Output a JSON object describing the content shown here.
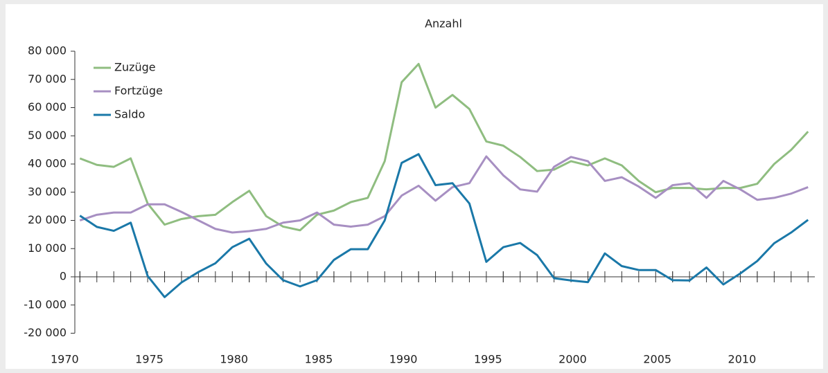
{
  "chart_data": {
    "type": "line",
    "title": "Anzahl",
    "x": [
      1970,
      1971,
      1972,
      1973,
      1974,
      1975,
      1976,
      1977,
      1978,
      1979,
      1980,
      1981,
      1982,
      1983,
      1984,
      1985,
      1986,
      1987,
      1988,
      1989,
      1990,
      1991,
      1992,
      1993,
      1994,
      1995,
      1996,
      1997,
      1998,
      1999,
      2000,
      2001,
      2002,
      2003,
      2004,
      2005,
      2006,
      2007,
      2008,
      2009,
      2010,
      2011,
      2012,
      2013
    ],
    "series": [
      {
        "name": "Zuzüge",
        "color": "#8fbd80",
        "values": [
          42000,
          39700,
          39000,
          42000,
          26000,
          18500,
          20500,
          21500,
          22000,
          26500,
          30500,
          21500,
          17800,
          16500,
          22000,
          23500,
          26500,
          28000,
          41000,
          69000,
          75500,
          60000,
          64500,
          59500,
          48000,
          46500,
          42500,
          37500,
          38000,
          41000,
          39500,
          42000,
          39500,
          34000,
          30000,
          31500,
          31500,
          31000,
          31500,
          31500,
          33000,
          40000,
          45000,
          51500
        ]
      },
      {
        "name": "Fortzüge",
        "color": "#a78fc2",
        "values": [
          20000,
          22000,
          22800,
          22800,
          25700,
          25700,
          23000,
          20000,
          17000,
          15700,
          16200,
          17000,
          19200,
          20000,
          22800,
          18500,
          17800,
          18500,
          21500,
          28800,
          32300,
          27000,
          31800,
          33200,
          42700,
          36000,
          31000,
          30200,
          39000,
          42500,
          41000,
          34000,
          35300,
          32000,
          28000,
          32500,
          33200,
          28000,
          34000,
          31000,
          27300,
          28000,
          29500,
          31800
        ]
      },
      {
        "name": "Saldo",
        "color": "#1a78a8",
        "values": [
          21700,
          17700,
          16300,
          19200,
          300,
          -7200,
          -2000,
          1700,
          4800,
          10500,
          13500,
          4700,
          -1200,
          -3400,
          -1200,
          6000,
          9800,
          9800,
          20000,
          40400,
          43500,
          32500,
          33200,
          26000,
          5300,
          10500,
          12000,
          7700,
          -500,
          -1300,
          -1900,
          8300,
          3800,
          2400,
          2400,
          -1200,
          -1300,
          3300,
          -2700,
          1200,
          5600,
          11900,
          15700,
          20200
        ]
      }
    ],
    "xlim": [
      1969.7,
      2013.4
    ],
    "xticks": [
      1970,
      1975,
      1980,
      1985,
      1990,
      1995,
      2000,
      2005,
      2010
    ],
    "ylim": [
      -20000,
      80000
    ],
    "yticks": [
      {
        "value": -20000,
        "label": "-20 000"
      },
      {
        "value": -10000,
        "label": "-10 000"
      },
      0,
      {
        "value": 10000,
        "label": "10 000"
      },
      {
        "value": 20000,
        "label": "20 000"
      },
      {
        "value": 30000,
        "label": "30 000"
      },
      {
        "value": 40000,
        "label": "40 000"
      },
      {
        "value": 50000,
        "label": "50 000"
      },
      {
        "value": 60000,
        "label": "60 000"
      },
      {
        "value": 70000,
        "label": "70 000"
      },
      {
        "value": 80000,
        "label": "80 000"
      }
    ],
    "grid": false,
    "legend": "top-left"
  }
}
